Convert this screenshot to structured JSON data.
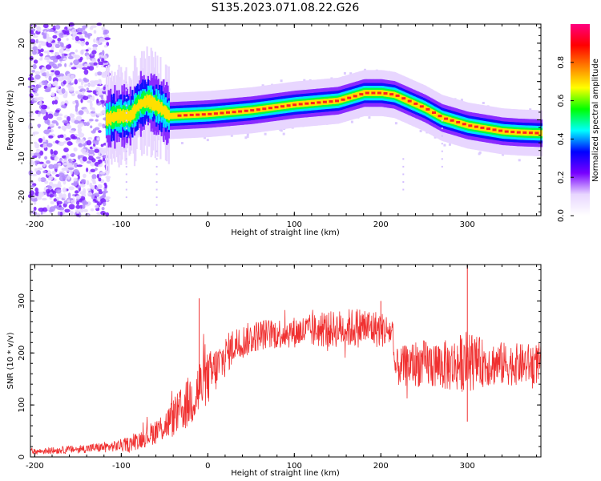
{
  "title": "S135.2023.071.08.22.G26",
  "chart_data": [
    {
      "type": "heatmap",
      "xlabel": "Height of straight line (km)",
      "ylabel": "Frequency (Hz)",
      "xlim": [
        -205,
        385
      ],
      "ylim": [
        -25,
        25
      ],
      "x_ticks": [
        -200,
        -100,
        0,
        100,
        200,
        300
      ],
      "y_ticks": [
        -20,
        -10,
        0,
        10,
        20
      ],
      "colorbar": {
        "label": "Normalized spectral amplitude",
        "range": [
          0,
          1
        ],
        "ticks": [
          "0.0",
          "0.2",
          "0.4",
          "0.6",
          "0.8"
        ],
        "colors": [
          "#ffffff",
          "#e8d6ff",
          "#7700ff",
          "#0000ff",
          "#00ffff",
          "#00ff00",
          "#ffff00",
          "#ff8000",
          "#ff0000",
          "#ff0080"
        ]
      },
      "ridge": {
        "x": [
          -120,
          -105,
          -90,
          -80,
          -70,
          -55,
          -45,
          0,
          50,
          100,
          150,
          180,
          200,
          215,
          230,
          250,
          270,
          300,
          340,
          360,
          385
        ],
        "y": [
          0,
          1,
          1,
          4,
          5,
          3,
          1,
          1.5,
          2.5,
          4,
          5,
          7,
          7,
          6.5,
          5,
          3,
          0.5,
          -1.5,
          -3,
          -3.3,
          -3.5
        ]
      },
      "noise_region": {
        "x": [
          -205,
          -115
        ],
        "y": [
          -25,
          25
        ]
      }
    },
    {
      "type": "line",
      "xlabel": "Height of straight line (km)",
      "ylabel": "SNR (10 * v/v)",
      "xlim": [
        -205,
        385
      ],
      "ylim": [
        0,
        370
      ],
      "x_ticks": [
        -200,
        -100,
        0,
        100,
        200,
        300
      ],
      "y_ticks": [
        0,
        100,
        200,
        300
      ],
      "color": "#f03030",
      "envelope": {
        "x": [
          -205,
          -150,
          -110,
          -90,
          -70,
          -50,
          -30,
          -10,
          10,
          30,
          60,
          100,
          140,
          180,
          200,
          214,
          215,
          240,
          280,
          300,
          320,
          360,
          385
        ],
        "mean": [
          10,
          15,
          20,
          25,
          40,
          60,
          90,
          130,
          170,
          215,
          235,
          240,
          245,
          250,
          245,
          240,
          170,
          180,
          175,
          185,
          180,
          178,
          180
        ],
        "amp": [
          5,
          8,
          10,
          15,
          20,
          30,
          45,
          60,
          45,
          35,
          30,
          30,
          35,
          40,
          35,
          30,
          35,
          45,
          50,
          60,
          45,
          40,
          40
        ]
      },
      "spikes": [
        {
          "x": -10,
          "y": 305
        },
        {
          "x": 300,
          "y": 368
        },
        {
          "x": 300,
          "y": 68
        },
        {
          "x": 200,
          "y": 300
        },
        {
          "x": 385,
          "y": 80
        }
      ]
    }
  ]
}
